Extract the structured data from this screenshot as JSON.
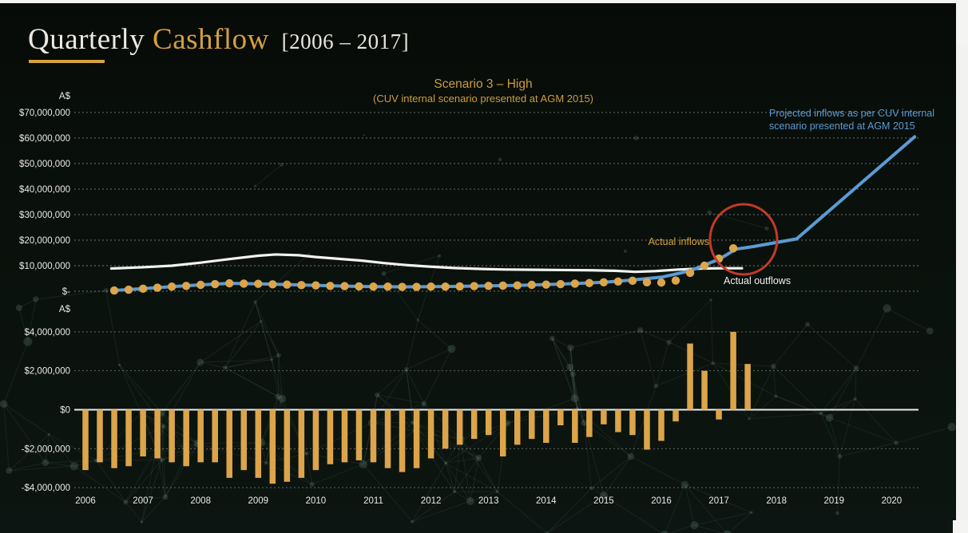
{
  "header": {
    "title_white": "Quarterly",
    "title_gold": "Cashflow",
    "title_range": "[2006 – 2017]"
  },
  "colors": {
    "background": "#0a110c",
    "gold": "#d6a33f",
    "bar_gold": "#dca54a",
    "blue": "#5b9bd5",
    "white_line": "#f2f2f2",
    "red_circle": "#c23a28",
    "tick_text": "#e9e9e9"
  },
  "chart_data": [
    {
      "id": "scenario-line-chart",
      "type": "line",
      "title": "Scenario 3 – High",
      "subtitle": "(CUV internal scenario presented at AGM 2015)",
      "ylabel": "A$",
      "yticks": [
        "$70,000,000",
        "$60,000,000",
        "$50,000,000",
        "$40,000,000",
        "$30,000,000",
        "$20,000,000",
        "$10,000,000",
        "$-"
      ],
      "ytick_values_millions": [
        70,
        60,
        50,
        40,
        30,
        20,
        10,
        0
      ],
      "ylim_millions": [
        0,
        70
      ],
      "xlim_years": [
        2005.8,
        2020.6
      ],
      "grid": "dotted horizontal",
      "legend_position": "none (inline annotations)",
      "series": [
        {
          "name": "Projected inflows (CUV internal scenario)",
          "type": "line",
          "color": "#5b9bd5",
          "x": [
            2006.5,
            2007,
            2007.5,
            2008,
            2008.5,
            2009,
            2009.5,
            2010,
            2010.5,
            2011,
            2011.5,
            2012,
            2012.5,
            2013,
            2013.5,
            2014,
            2014.5,
            2015,
            2015.5,
            2016,
            2016.5,
            2017,
            2017.3,
            2017.6,
            2018.35,
            2020.4
          ],
          "y": [
            0.3,
            1.0,
            1.8,
            2.5,
            3.1,
            2.9,
            2.6,
            2.3,
            2.0,
            1.8,
            1.7,
            1.8,
            1.9,
            2.1,
            2.3,
            2.6,
            3.0,
            3.5,
            4.4,
            5.5,
            8.0,
            12.5,
            16.5,
            17.5,
            20.5,
            60.5
          ]
        },
        {
          "name": "Actual outflows",
          "type": "line",
          "color": "#f2f2f2",
          "x": [
            2006.45,
            2007,
            2007.5,
            2008,
            2008.5,
            2009,
            2009.3,
            2009.7,
            2010,
            2010.4,
            2010.8,
            2011.2,
            2011.6,
            2012,
            2012.4,
            2012.9,
            2013.3,
            2013.8,
            2014.3,
            2014.8,
            2015.2,
            2015.55,
            2015.9,
            2016.3,
            2016.7,
            2017.1,
            2017.4
          ],
          "y": [
            8.9,
            9.4,
            10.0,
            11.2,
            12.6,
            13.9,
            14.4,
            14.1,
            13.4,
            12.7,
            12.0,
            11.0,
            10.2,
            9.6,
            9.1,
            8.7,
            8.5,
            8.4,
            8.3,
            8.2,
            8.0,
            7.6,
            7.9,
            8.5,
            8.9,
            9.0,
            9.0
          ]
        },
        {
          "name": "Actual inflows",
          "type": "scatter",
          "color": "#dca54a",
          "x": [
            2006.5,
            2006.75,
            2007,
            2007.25,
            2007.5,
            2007.75,
            2008,
            2008.25,
            2008.5,
            2008.75,
            2009,
            2009.25,
            2009.5,
            2009.75,
            2010,
            2010.25,
            2010.5,
            2010.75,
            2011,
            2011.25,
            2011.5,
            2011.75,
            2012,
            2012.25,
            2012.5,
            2012.75,
            2013,
            2013.25,
            2013.5,
            2013.75,
            2014,
            2014.25,
            2014.5,
            2014.75,
            2015,
            2015.25,
            2015.5,
            2015.75,
            2016,
            2016.25,
            2016.5,
            2016.75,
            2017,
            2017.25
          ],
          "y": [
            0.3,
            0.6,
            1.0,
            1.4,
            1.8,
            2.1,
            2.5,
            2.8,
            3.1,
            3.0,
            2.9,
            2.7,
            2.6,
            2.4,
            2.3,
            2.1,
            2.0,
            1.9,
            1.8,
            1.8,
            1.7,
            1.7,
            1.8,
            1.8,
            1.9,
            2.0,
            2.1,
            2.2,
            2.3,
            2.5,
            2.6,
            2.8,
            3.0,
            3.2,
            3.5,
            3.8,
            4.1,
            3.5,
            3.4,
            4.2,
            7.2,
            10.0,
            12.8,
            16.8
          ]
        }
      ],
      "annotations": [
        {
          "text": "Actual inflows",
          "color": "#d6a33f"
        },
        {
          "text": "Actual outflows",
          "color": "#f0f0f0"
        },
        {
          "text": "Projected inflows as per CUV internal scenario presented at AGM 2015",
          "color": "#5b9bd5"
        },
        {
          "shape": "circle-highlight",
          "color": "#c23a28",
          "note": "red circle where actual inflows meet the projected line, ~2017, ~$17M–$20M"
        }
      ]
    },
    {
      "id": "quarterly-net-cashflow-bars",
      "type": "bar",
      "ylabel": "A$",
      "yticks": [
        "$4,000,000",
        "$2,000,000",
        "$0",
        "-$2,000,000",
        "-$4,000,000"
      ],
      "ytick_values_millions": [
        4,
        2,
        0,
        -2,
        -4
      ],
      "ylim_millions": [
        -4.5,
        4.5
      ],
      "grid": "dotted horizontal, solid zero line",
      "bar_color": "#dca54a",
      "xticks": [
        "2006",
        "2007",
        "2008",
        "2009",
        "2010",
        "2011",
        "2012",
        "2013",
        "2014",
        "2015",
        "2016",
        "2017",
        "2018",
        "2019",
        "2020"
      ],
      "xtick_years": [
        2006,
        2007,
        2008,
        2009,
        2010,
        2011,
        2012,
        2013,
        2014,
        2015,
        2016,
        2017,
        2018,
        2019,
        2020
      ],
      "x_years": [
        2006,
        2006.25,
        2006.5,
        2006.75,
        2007,
        2007.25,
        2007.5,
        2007.75,
        2008,
        2008.25,
        2008.5,
        2008.75,
        2009,
        2009.25,
        2009.5,
        2009.75,
        2010,
        2010.25,
        2010.5,
        2010.75,
        2011,
        2011.25,
        2011.5,
        2011.75,
        2012,
        2012.25,
        2012.5,
        2012.75,
        2013,
        2013.25,
        2013.5,
        2013.75,
        2014,
        2014.25,
        2014.5,
        2014.75,
        2015,
        2015.25,
        2015.5,
        2015.75,
        2016,
        2016.25,
        2016.5,
        2016.75,
        2017,
        2017.25,
        2017.5
      ],
      "values_millions": [
        -3.1,
        -2.7,
        -3.0,
        -2.9,
        -2.4,
        -2.5,
        -2.7,
        -2.9,
        -2.7,
        -2.7,
        -3.5,
        -3.1,
        -3.5,
        -3.8,
        -3.7,
        -3.5,
        -3.1,
        -2.8,
        -2.7,
        -2.6,
        -2.7,
        -3.0,
        -3.2,
        -3.0,
        -2.5,
        -2.0,
        -1.8,
        -1.5,
        -1.3,
        -2.4,
        -1.8,
        -1.5,
        -1.7,
        -0.8,
        -1.7,
        -1.4,
        -0.75,
        -1.15,
        -1.3,
        -2.05,
        -1.6,
        -0.6,
        3.4,
        2.0,
        -0.5,
        4.0,
        2.35
      ]
    }
  ]
}
